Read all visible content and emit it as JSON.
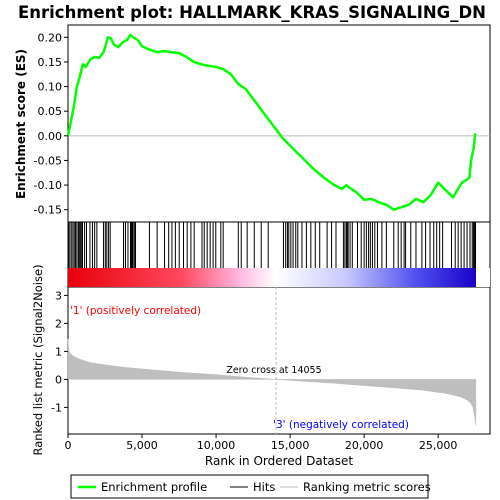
{
  "title": "Enrichment plot: HALLMARK_KRAS_SIGNALING_DN",
  "colors": {
    "profile": "#00ff00",
    "hits": "#000000",
    "metric_fill": "#bebebe",
    "pos_label": "#ff0000",
    "neg_label": "#0000ff",
    "zero_line": "#bbbbbb"
  },
  "chart_data": [
    {
      "type": "line",
      "name": "enrichment_score_panel",
      "ylabel": "Enrichment score (ES)",
      "ylim": [
        -0.175,
        0.225
      ],
      "yticks": [
        -0.15,
        -0.1,
        -0.05,
        0.0,
        0.05,
        0.1,
        0.15,
        0.2
      ],
      "ytick_labels": [
        "-0.15",
        "-0.10",
        "-0.05",
        "0.00",
        "0.05",
        "0.10",
        "0.15",
        "0.20"
      ],
      "xlim": [
        0,
        28500
      ],
      "grid": false,
      "series": [
        {
          "name": "Enrichment profile",
          "x": [
            0,
            200,
            400,
            600,
            800,
            1000,
            1200,
            1500,
            1800,
            2100,
            2400,
            2700,
            2900,
            3100,
            3400,
            3700,
            4000,
            4200,
            4400,
            4700,
            5000,
            5500,
            6000,
            6500,
            7000,
            7500,
            8000,
            8500,
            9000,
            9500,
            10000,
            10500,
            11000,
            11500,
            12000,
            12500,
            13000,
            13500,
            14000,
            14500,
            15000,
            15500,
            16000,
            16500,
            17000,
            17500,
            18000,
            18500,
            18800,
            19000,
            19500,
            20000,
            20500,
            21000,
            21500,
            22000,
            22500,
            23000,
            23500,
            24000,
            24500,
            25000,
            25500,
            26000,
            26300,
            26600,
            26900,
            27100,
            27250,
            27400,
            27500
          ],
          "y": [
            0.0,
            0.03,
            0.06,
            0.1,
            0.12,
            0.145,
            0.14,
            0.155,
            0.16,
            0.158,
            0.17,
            0.2,
            0.198,
            0.185,
            0.18,
            0.19,
            0.195,
            0.205,
            0.2,
            0.195,
            0.182,
            0.175,
            0.17,
            0.172,
            0.17,
            0.168,
            0.16,
            0.15,
            0.145,
            0.142,
            0.14,
            0.135,
            0.125,
            0.105,
            0.095,
            0.075,
            0.055,
            0.035,
            0.015,
            -0.005,
            -0.02,
            -0.035,
            -0.05,
            -0.065,
            -0.078,
            -0.09,
            -0.1,
            -0.108,
            -0.1,
            -0.105,
            -0.115,
            -0.13,
            -0.128,
            -0.135,
            -0.14,
            -0.15,
            -0.145,
            -0.14,
            -0.128,
            -0.135,
            -0.12,
            -0.095,
            -0.11,
            -0.125,
            -0.11,
            -0.095,
            -0.09,
            -0.085,
            -0.045,
            -0.025,
            0.005
          ]
        }
      ]
    },
    {
      "type": "hits",
      "name": "hits_panel",
      "xlim": [
        0,
        28500
      ],
      "hit_positions": [
        30,
        120,
        220,
        330,
        420,
        510,
        600,
        700,
        760,
        830,
        900,
        980,
        1120,
        1250,
        1480,
        1650,
        1800,
        1950,
        2400,
        2520,
        2620,
        2740,
        2850,
        3750,
        3880,
        4050,
        4220,
        4280,
        4330,
        4390,
        4480,
        4560,
        5500,
        6020,
        6520,
        6800,
        7020,
        7250,
        7510,
        7800,
        8050,
        8300,
        8520,
        9050,
        9200,
        9400,
        9600,
        9800,
        9980,
        10320,
        10480,
        11500,
        11700,
        12100,
        12580,
        13050,
        13520,
        14550,
        14700,
        14820,
        14910,
        15050,
        15200,
        15380,
        15520,
        15800,
        16100,
        16400,
        16700,
        17000,
        17500,
        17800,
        18100,
        18600,
        18700,
        18800,
        18860,
        18920,
        19050,
        19200,
        19550,
        19800,
        20000,
        20150,
        20300,
        20420,
        20560,
        20720,
        20900,
        21200,
        21500,
        22000,
        22300,
        22500,
        22700,
        22800,
        23150,
        23500,
        23900,
        24150,
        24450,
        24700,
        24900,
        25100,
        25300,
        25900,
        26150,
        26350,
        26550,
        26750,
        26950,
        27150,
        27300,
        27380,
        27450,
        27520
      ]
    },
    {
      "type": "area",
      "name": "ranked_metric_panel",
      "xlabel": "Rank in Ordered Dataset",
      "ylabel": "Ranked list metric (Signal2Noise)",
      "ylim": [
        -1.95,
        3.3
      ],
      "yticks": [
        -1,
        0,
        1,
        2,
        3
      ],
      "ytick_labels": [
        "-1",
        "0",
        "1",
        "2",
        "3"
      ],
      "xlim": [
        0,
        28500
      ],
      "xticks": [
        0,
        5000,
        10000,
        15000,
        20000,
        25000
      ],
      "xtick_labels": [
        "0",
        "5,000",
        "10,000",
        "15,000",
        "20,000",
        "25,000"
      ],
      "series": [
        {
          "name": "Ranking metric scores",
          "x": [
            0,
            30,
            100,
            200,
            400,
            800,
            1500,
            2500,
            4000,
            6000,
            8000,
            10000,
            12000,
            14055,
            16000,
            18000,
            20000,
            22000,
            24000,
            25500,
            26500,
            27000,
            27200,
            27350,
            27450,
            27550
          ],
          "y": [
            1.45,
            1.15,
            0.98,
            0.9,
            0.82,
            0.72,
            0.6,
            0.52,
            0.42,
            0.33,
            0.24,
            0.17,
            0.08,
            0.0,
            -0.07,
            -0.14,
            -0.22,
            -0.3,
            -0.39,
            -0.5,
            -0.62,
            -0.75,
            -0.85,
            -1.0,
            -1.3,
            -1.65
          ]
        }
      ],
      "annotations": {
        "zero_cross": "Zero cross at 14055",
        "positive": "'1' (positively correlated)",
        "negative": "'3' (negatively correlated)"
      },
      "zero_cross_rank": 14055
    }
  ],
  "legend": {
    "items": [
      "Enrichment profile",
      "Hits",
      "Ranking metric scores"
    ]
  }
}
